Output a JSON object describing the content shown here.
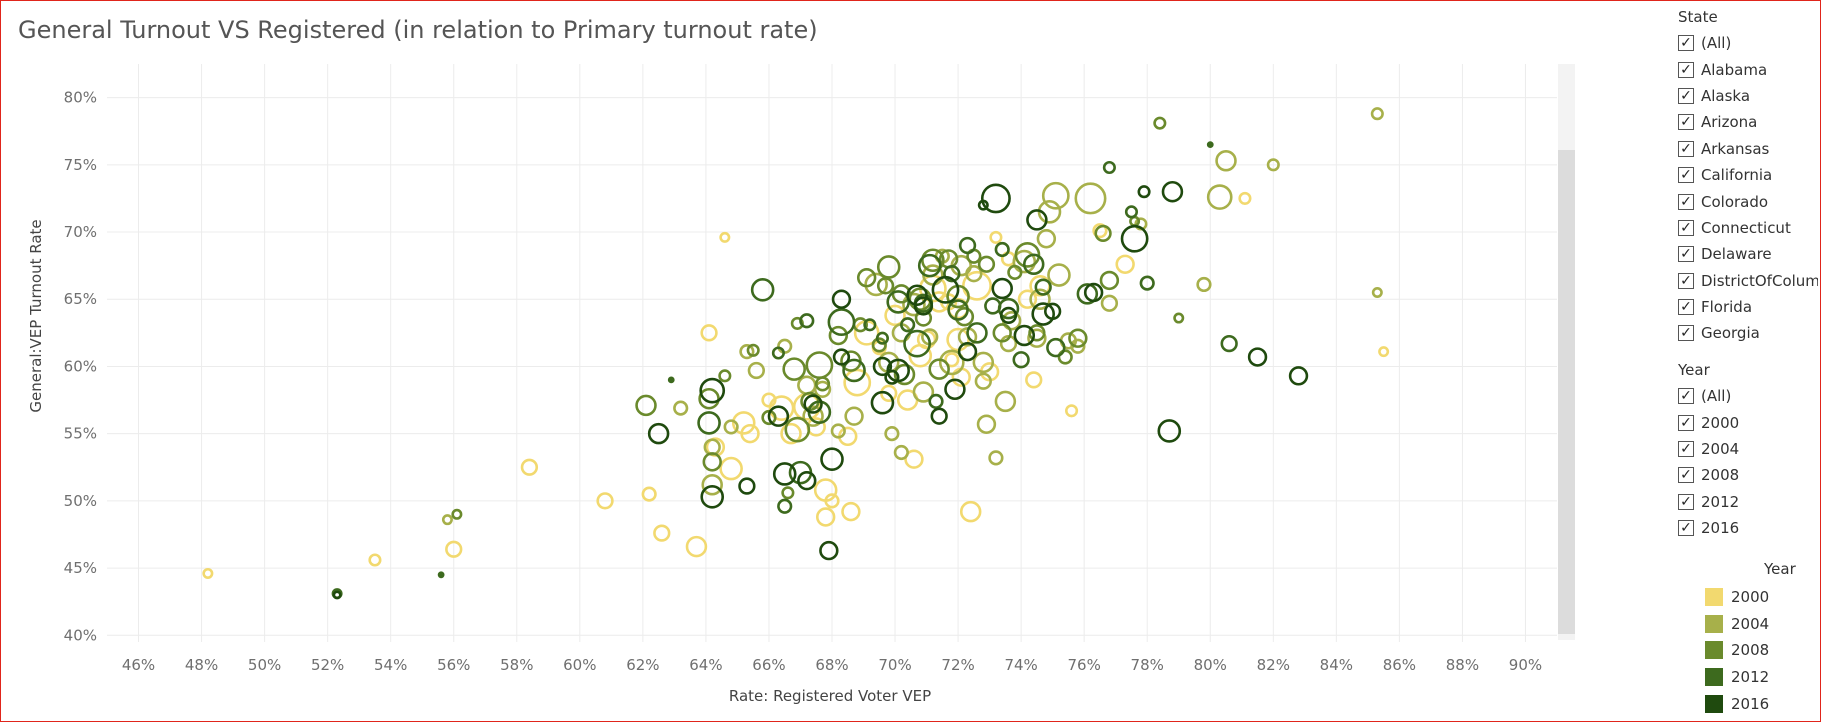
{
  "chart_data": {
    "type": "scatter",
    "title": "General Turnout VS Registered (in relation to Primary turnout rate)",
    "xlabel": "Rate: Registered Voter VEP",
    "ylabel": "General:VEP Turnout Rate",
    "xlim": [
      45,
      91
    ],
    "ylim": [
      39.5,
      82.5
    ],
    "x_ticks": [
      "46%",
      "48%",
      "50%",
      "52%",
      "54%",
      "56%",
      "58%",
      "60%",
      "62%",
      "64%",
      "66%",
      "68%",
      "70%",
      "72%",
      "74%",
      "76%",
      "78%",
      "80%",
      "82%",
      "84%",
      "86%",
      "88%",
      "90%"
    ],
    "y_ticks": [
      "40%",
      "45%",
      "50%",
      "55%",
      "60%",
      "65%",
      "70%",
      "75%",
      "80%"
    ],
    "grid": true,
    "marker": "hollow-circle",
    "size_encoding": "Primary turnout rate",
    "legend_placement": "right",
    "series": [
      {
        "name": "2000",
        "color": "#f2d96f",
        "points": [
          [
            48.2,
            44.6,
            4
          ],
          [
            53.5,
            45.6,
            5
          ],
          [
            56,
            46.4,
            7
          ],
          [
            58.4,
            52.5,
            7
          ],
          [
            60.8,
            50,
            7
          ],
          [
            62.2,
            50.5,
            6
          ],
          [
            62.6,
            47.6,
            7
          ],
          [
            63.7,
            46.6,
            9
          ],
          [
            64.1,
            62.5,
            7
          ],
          [
            64.3,
            54,
            8
          ],
          [
            64.6,
            69.6,
            4
          ],
          [
            64.8,
            52.4,
            10
          ],
          [
            65.2,
            55.8,
            10
          ],
          [
            65.4,
            55,
            8
          ],
          [
            66,
            57.5,
            6
          ],
          [
            66.4,
            56.9,
            11
          ],
          [
            66.7,
            55,
            9
          ],
          [
            67.2,
            57,
            12
          ],
          [
            67.5,
            55.5,
            8
          ],
          [
            67.8,
            50.8,
            10
          ],
          [
            67.8,
            48.8,
            8
          ],
          [
            68,
            50,
            6
          ],
          [
            68.5,
            54.8,
            8
          ],
          [
            68.6,
            49.2,
            8
          ],
          [
            68.8,
            58.8,
            12
          ],
          [
            69.1,
            62.5,
            11
          ],
          [
            69.5,
            61.4,
            6
          ],
          [
            69.8,
            58,
            7
          ],
          [
            70,
            63.8,
            9
          ],
          [
            70.4,
            57.5,
            9
          ],
          [
            70.6,
            53.1,
            8
          ],
          [
            70.8,
            60.8,
            10
          ],
          [
            71,
            62,
            8
          ],
          [
            71.2,
            65.8,
            12
          ],
          [
            71.4,
            64.8,
            9
          ],
          [
            71.7,
            64.8,
            7
          ],
          [
            71.8,
            60.5,
            6
          ],
          [
            72,
            64.3,
            9
          ],
          [
            72,
            62,
            10
          ],
          [
            72.1,
            59.2,
            8
          ],
          [
            72.4,
            49.2,
            9
          ],
          [
            72.6,
            66,
            13
          ],
          [
            73,
            59.6,
            8
          ],
          [
            73.2,
            69.6,
            5
          ],
          [
            73.6,
            68,
            6
          ],
          [
            74.2,
            65,
            8
          ],
          [
            74.4,
            59,
            7
          ],
          [
            74.6,
            66,
            9
          ],
          [
            75.6,
            56.7,
            5
          ],
          [
            76.5,
            70.1,
            6
          ],
          [
            77.3,
            67.6,
            8
          ],
          [
            81.1,
            72.5,
            5
          ],
          [
            85.5,
            61.1,
            4
          ]
        ]
      },
      {
        "name": "2004",
        "color": "#a7b04a",
        "points": [
          [
            55.8,
            48.6,
            4
          ],
          [
            63.2,
            56.9,
            6
          ],
          [
            64.2,
            54,
            7
          ],
          [
            64.2,
            51.2,
            9
          ],
          [
            64.8,
            55.5,
            6
          ],
          [
            65.3,
            61.1,
            6
          ],
          [
            65.6,
            59.7,
            7
          ],
          [
            66.5,
            61.5,
            6
          ],
          [
            67.2,
            58.6,
            8
          ],
          [
            67.4,
            56.3,
            9
          ],
          [
            67.7,
            58.3,
            7
          ],
          [
            68.2,
            55.2,
            6
          ],
          [
            68.7,
            56.3,
            8
          ],
          [
            69.4,
            66.1,
            10
          ],
          [
            69.8,
            60.3,
            9
          ],
          [
            69.9,
            55,
            6
          ],
          [
            70.2,
            53.6,
            6
          ],
          [
            70.2,
            62.5,
            8
          ],
          [
            70.6,
            64.6,
            10
          ],
          [
            70.9,
            58.1,
            9
          ],
          [
            71.1,
            62.2,
            7
          ],
          [
            71.2,
            66.8,
            9
          ],
          [
            71.5,
            68.2,
            6
          ],
          [
            71.8,
            60.3,
            11
          ],
          [
            72.1,
            67.5,
            9
          ],
          [
            72.3,
            62.2,
            8
          ],
          [
            72.5,
            66.9,
            7
          ],
          [
            72.8,
            60.3,
            9
          ],
          [
            72.8,
            58.9,
            7
          ],
          [
            72.9,
            55.7,
            8
          ],
          [
            73.2,
            53.2,
            6
          ],
          [
            73.5,
            57.4,
            9
          ],
          [
            73.6,
            61.7,
            7
          ],
          [
            73.7,
            63.4,
            8
          ],
          [
            74.1,
            67.8,
            10
          ],
          [
            74.5,
            62.1,
            8
          ],
          [
            74.6,
            65,
            9
          ],
          [
            74.8,
            69.5,
            8
          ],
          [
            74.9,
            71.5,
            10
          ],
          [
            75.1,
            72.7,
            12
          ],
          [
            75.2,
            66.8,
            10
          ],
          [
            75.5,
            61.9,
            7
          ],
          [
            75.8,
            61.5,
            6
          ],
          [
            76.2,
            72.5,
            14
          ],
          [
            76.8,
            64.7,
            7
          ],
          [
            77.8,
            70.6,
            5
          ],
          [
            79.8,
            66.1,
            6
          ],
          [
            80.3,
            72.6,
            11
          ],
          [
            80.5,
            75.3,
            9
          ],
          [
            82,
            75,
            5
          ],
          [
            85.3,
            78.8,
            5
          ],
          [
            85.3,
            65.5,
            4
          ]
        ]
      },
      {
        "name": "2008",
        "color": "#6a8a2c",
        "points": [
          [
            56.1,
            49,
            4
          ],
          [
            62.1,
            57.1,
            9
          ],
          [
            64.1,
            57.6,
            9
          ],
          [
            64.2,
            52.9,
            8
          ],
          [
            64.6,
            59.3,
            5
          ],
          [
            65.5,
            61.2,
            5
          ],
          [
            66,
            56.2,
            6
          ],
          [
            66.6,
            50.6,
            5
          ],
          [
            66.8,
            59.8,
            10
          ],
          [
            66.9,
            63.2,
            5
          ],
          [
            66.9,
            55.3,
            11
          ],
          [
            67.3,
            57.4,
            8
          ],
          [
            67.6,
            60.1,
            12
          ],
          [
            67.7,
            58.7,
            6
          ],
          [
            68.2,
            62.3,
            8
          ],
          [
            68.6,
            60.4,
            9
          ],
          [
            68.9,
            63.1,
            6
          ],
          [
            69.1,
            66.6,
            8
          ],
          [
            69.5,
            61.6,
            6
          ],
          [
            69.7,
            66,
            7
          ],
          [
            69.8,
            67.4,
            10
          ],
          [
            70.2,
            65.4,
            8
          ],
          [
            70.3,
            59.4,
            9
          ],
          [
            70.8,
            65,
            10
          ],
          [
            70.9,
            63.6,
            7
          ],
          [
            71.2,
            67.9,
            10
          ],
          [
            71.4,
            59.8,
            9
          ],
          [
            71.7,
            68,
            8
          ],
          [
            72,
            65.2,
            10
          ],
          [
            72.2,
            63.7,
            8
          ],
          [
            72.5,
            68.2,
            6
          ],
          [
            72.9,
            67.6,
            7
          ],
          [
            73.4,
            62.5,
            8
          ],
          [
            73.8,
            67,
            6
          ],
          [
            74.2,
            68.3,
            11
          ],
          [
            74.5,
            62.5,
            7
          ],
          [
            75.4,
            60.7,
            6
          ],
          [
            75.8,
            62.1,
            8
          ],
          [
            76.6,
            69.9,
            7
          ],
          [
            76.8,
            66.4,
            8
          ],
          [
            77.6,
            70.8,
            4
          ],
          [
            78.4,
            78.1,
            5
          ],
          [
            79,
            63.6,
            4
          ]
        ]
      },
      {
        "name": "2012",
        "color": "#3d6a1e",
        "points": [
          [
            52.3,
            43.1,
            4
          ],
          [
            55.6,
            44.5,
            2
          ],
          [
            62.9,
            59,
            2
          ],
          [
            64.1,
            55.8,
            10
          ],
          [
            65.8,
            65.7,
            10
          ],
          [
            66.3,
            61,
            5
          ],
          [
            66.5,
            49.6,
            6
          ],
          [
            67,
            52.1,
            10
          ],
          [
            67.2,
            63.4,
            6
          ],
          [
            67.6,
            56.6,
            10
          ],
          [
            68.3,
            63.3,
            12
          ],
          [
            68.7,
            59.7,
            10
          ],
          [
            69.2,
            63.1,
            5
          ],
          [
            69.6,
            62.1,
            5
          ],
          [
            70.1,
            64.8,
            10
          ],
          [
            70.4,
            63.1,
            6
          ],
          [
            70.7,
            61.7,
            12
          ],
          [
            70.9,
            64.7,
            8
          ],
          [
            71.1,
            67.5,
            10
          ],
          [
            71.3,
            57.4,
            6
          ],
          [
            71.8,
            66.9,
            7
          ],
          [
            72,
            64.2,
            9
          ],
          [
            72.3,
            69,
            7
          ],
          [
            72.6,
            62.5,
            9
          ],
          [
            73.1,
            64.5,
            7
          ],
          [
            73.4,
            68.7,
            6
          ],
          [
            73.6,
            64.3,
            9
          ],
          [
            74,
            60.5,
            7
          ],
          [
            74.4,
            67.6,
            9
          ],
          [
            74.7,
            65.9,
            7
          ],
          [
            75.1,
            61.4,
            8
          ],
          [
            76.1,
            65.4,
            9
          ],
          [
            76.8,
            74.8,
            5
          ],
          [
            77.5,
            71.5,
            5
          ],
          [
            78,
            66.2,
            6
          ],
          [
            80,
            76.5,
            2
          ],
          [
            80.6,
            61.7,
            7
          ]
        ]
      },
      {
        "name": "2016",
        "color": "#1f4a0e",
        "points": [
          [
            52.3,
            43,
            3
          ],
          [
            62.5,
            55,
            9
          ],
          [
            64.2,
            50.3,
            10
          ],
          [
            64.2,
            58.2,
            11
          ],
          [
            65.3,
            51.1,
            7
          ],
          [
            66.3,
            56.3,
            9
          ],
          [
            66.5,
            52,
            10
          ],
          [
            67.2,
            51.5,
            8
          ],
          [
            67.4,
            57.2,
            8
          ],
          [
            67.9,
            46.3,
            8
          ],
          [
            68,
            53.1,
            10
          ],
          [
            68.3,
            60.7,
            7
          ],
          [
            68.3,
            65,
            8
          ],
          [
            69.6,
            60,
            8
          ],
          [
            69.6,
            57.3,
            10
          ],
          [
            69.9,
            59.2,
            6
          ],
          [
            70.1,
            59.7,
            10
          ],
          [
            70.7,
            65.3,
            9
          ],
          [
            70.9,
            64.5,
            8
          ],
          [
            71.4,
            56.3,
            7
          ],
          [
            71.6,
            65.7,
            12
          ],
          [
            71.9,
            58.3,
            9
          ],
          [
            72.3,
            61.1,
            8
          ],
          [
            72.8,
            72,
            4
          ],
          [
            73.2,
            72.5,
            13
          ],
          [
            73.4,
            65.8,
            9
          ],
          [
            73.6,
            63.8,
            7
          ],
          [
            74.1,
            62.3,
            9
          ],
          [
            74.5,
            70.9,
            9
          ],
          [
            74.7,
            63.9,
            10
          ],
          [
            75,
            64.1,
            7
          ],
          [
            76.3,
            65.5,
            8
          ],
          [
            77.6,
            69.5,
            12
          ],
          [
            77.9,
            73,
            5
          ],
          [
            78.7,
            55.2,
            10
          ],
          [
            78.8,
            73,
            9
          ],
          [
            81.5,
            60.7,
            8
          ],
          [
            82.8,
            59.3,
            8
          ]
        ]
      }
    ]
  },
  "filters": {
    "state": {
      "title": "State",
      "items": [
        "(All)",
        "Alabama",
        "Alaska",
        "Arizona",
        "Arkansas",
        "California",
        "Colorado",
        "Connecticut",
        "Delaware",
        "DistrictOfColumbia",
        "Florida",
        "Georgia"
      ]
    },
    "year": {
      "title": "Year",
      "items": [
        "(All)",
        "2000",
        "2004",
        "2008",
        "2012",
        "2016"
      ]
    }
  },
  "legend": {
    "title": "Year",
    "items": [
      {
        "label": "2000",
        "color": "#f2d96f"
      },
      {
        "label": "2004",
        "color": "#a7b04a"
      },
      {
        "label": "2008",
        "color": "#6a8a2c"
      },
      {
        "label": "2012",
        "color": "#3d6a1e"
      },
      {
        "label": "2016",
        "color": "#1f4a0e"
      }
    ]
  },
  "checkbox_mark": "✓"
}
